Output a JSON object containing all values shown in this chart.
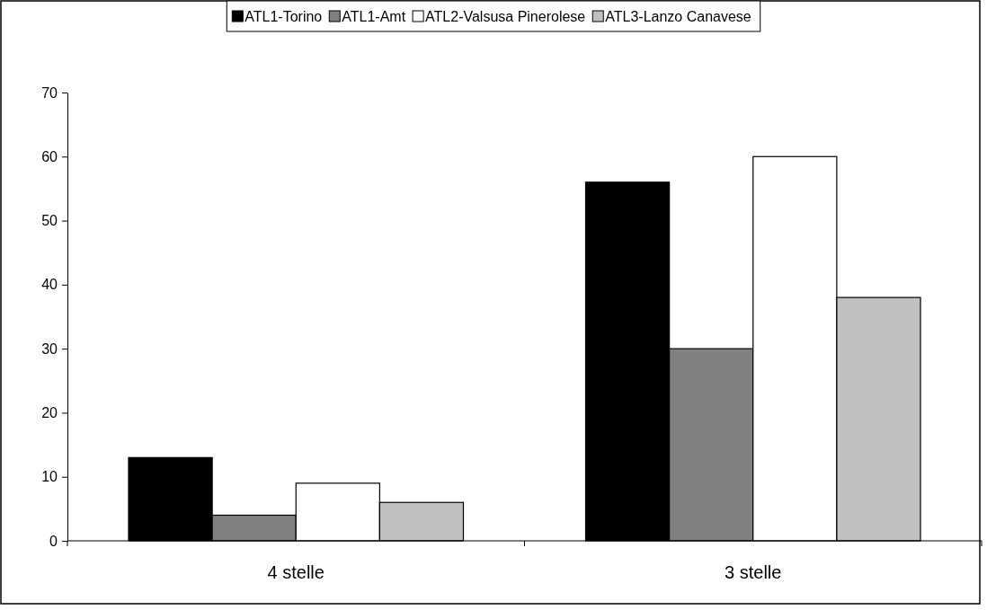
{
  "chart_data": {
    "type": "bar",
    "categories": [
      "4 stelle",
      "3 stelle"
    ],
    "series": [
      {
        "name": "ATL1-Torino",
        "color": "#000000",
        "values": [
          13,
          56
        ]
      },
      {
        "name": "ATL1-Amt",
        "color": "#808080",
        "values": [
          4,
          30
        ]
      },
      {
        "name": "ATL2-Valsusa Pinerolese",
        "color": "#ffffff",
        "values": [
          9,
          60
        ]
      },
      {
        "name": "ATL3-Lanzo Canavese",
        "color": "#c0c0c0",
        "values": [
          6,
          38
        ]
      }
    ],
    "ylim": [
      0,
      70
    ],
    "yticks": [
      0,
      10,
      20,
      30,
      40,
      50,
      60,
      70
    ],
    "grid": false,
    "legend": "top"
  }
}
